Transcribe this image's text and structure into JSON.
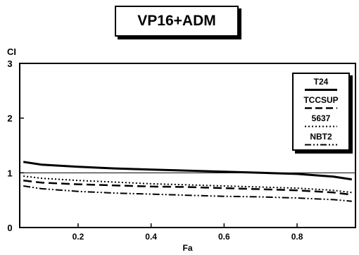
{
  "chart_data": {
    "type": "line",
    "title": "VP16+ADM",
    "xlabel": "Fa",
    "ylabel": "CI",
    "xlim": [
      0.04,
      0.96
    ],
    "ylim": [
      0,
      3
    ],
    "x_ticks": [
      0.2,
      0.4,
      0.6,
      0.8
    ],
    "x_tick_labels": [
      "0.2",
      "0.4",
      "0.6",
      "0.8"
    ],
    "y_ticks": [
      0,
      1,
      2,
      3
    ],
    "y_tick_labels": [
      "0",
      "1",
      "2",
      "3"
    ],
    "reference_line": 1,
    "grid": false,
    "legend_position": "top-right",
    "x": [
      0.05,
      0.1,
      0.2,
      0.3,
      0.4,
      0.5,
      0.6,
      0.7,
      0.8,
      0.9,
      0.95
    ],
    "series": [
      {
        "name": "T24",
        "style": "solid",
        "values": [
          1.2,
          1.15,
          1.11,
          1.08,
          1.06,
          1.04,
          1.02,
          1.0,
          0.98,
          0.93,
          0.88
        ]
      },
      {
        "name": "TCCSUP",
        "style": "dashed",
        "values": [
          0.86,
          0.82,
          0.79,
          0.77,
          0.75,
          0.74,
          0.72,
          0.7,
          0.68,
          0.64,
          0.6
        ]
      },
      {
        "name": "5637",
        "style": "dotted",
        "values": [
          0.94,
          0.9,
          0.86,
          0.83,
          0.8,
          0.78,
          0.76,
          0.74,
          0.72,
          0.68,
          0.64
        ]
      },
      {
        "name": "NBT2",
        "style": "dash-dot-dot",
        "values": [
          0.76,
          0.71,
          0.66,
          0.63,
          0.61,
          0.59,
          0.57,
          0.56,
          0.54,
          0.51,
          0.48
        ]
      }
    ]
  }
}
